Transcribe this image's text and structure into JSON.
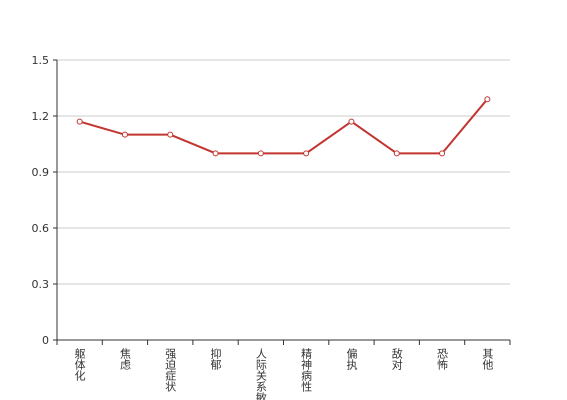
{
  "chart_data": {
    "type": "line",
    "categories": [
      "躯体化",
      "焦虑",
      "强迫症状",
      "抑郁",
      "人际关系敏感",
      "精神病性",
      "偏执",
      "敌对",
      "恐怖",
      "其他"
    ],
    "series": [
      {
        "color": "#c23531",
        "values": [
          1.17,
          1.1,
          1.1,
          1.0,
          1.0,
          1.0,
          1.17,
          1.0,
          1.0,
          1.29
        ]
      }
    ],
    "ylim": [
      0,
      1.5
    ],
    "yticks": [
      0,
      0.3,
      0.6,
      0.9,
      1.2,
      1.5
    ],
    "grid": true
  }
}
